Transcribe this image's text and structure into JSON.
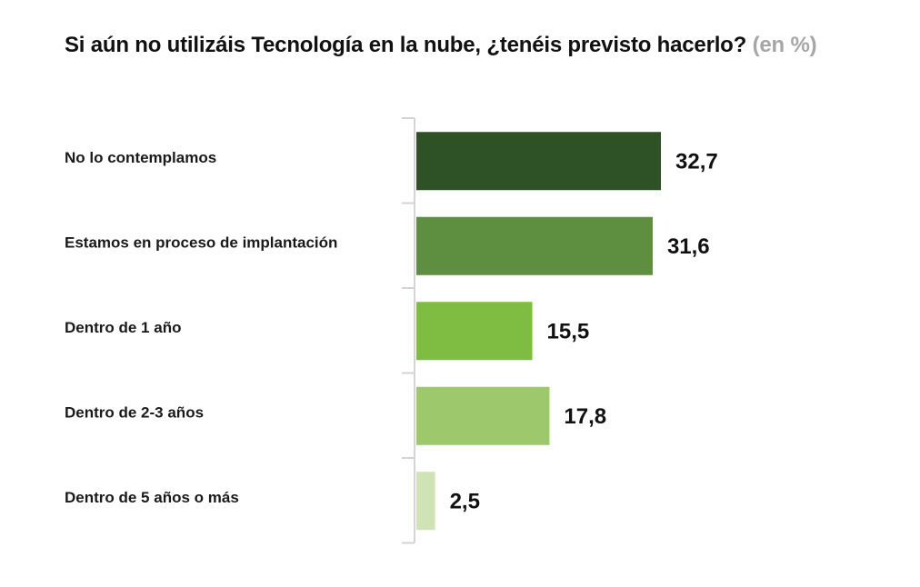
{
  "chart_data": {
    "type": "bar",
    "orientation": "horizontal",
    "title": "Si aún no utilizáis Tecnología en la nube, ¿tenéis previsto hacerlo?",
    "subtitle_unit": "(en %)",
    "categories": [
      "No lo contemplamos",
      "Estamos en proceso de implantación",
      "Dentro de 1 año",
      "Dentro de 2-3 años",
      "Dentro de 5 años o más"
    ],
    "values": [
      32.7,
      31.6,
      15.5,
      17.8,
      2.5
    ],
    "value_labels": [
      "32,7",
      "31,6",
      "15,5",
      "17,8",
      "2,5"
    ],
    "colors": [
      "#2e5226",
      "#5e8e40",
      "#7fbd42",
      "#9dc86b",
      "#d0e3b5"
    ],
    "xlim": [
      0,
      40
    ],
    "grid": false,
    "legend": "none"
  }
}
